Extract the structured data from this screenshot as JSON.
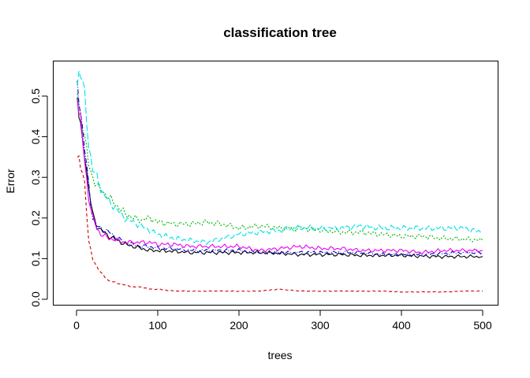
{
  "chart_data": {
    "type": "line",
    "title": "classification tree",
    "xlabel": "trees",
    "ylabel": "Error",
    "xlim": [
      0,
      500
    ],
    "ylim": [
      0,
      0.57
    ],
    "x_ticks": [
      0,
      100,
      200,
      300,
      400,
      500
    ],
    "y_ticks": [
      0.0,
      0.1,
      0.2,
      0.3,
      0.4,
      0.5
    ],
    "grid": false,
    "legend": "none",
    "x": [
      1,
      5,
      10,
      15,
      20,
      25,
      30,
      40,
      50,
      60,
      70,
      80,
      90,
      100,
      120,
      140,
      160,
      180,
      200,
      225,
      250,
      275,
      300,
      325,
      350,
      375,
      400,
      425,
      450,
      475,
      500
    ],
    "series": [
      {
        "color": "#000000",
        "dash": "solid",
        "values": [
          0.48,
          0.42,
          0.36,
          0.27,
          0.21,
          0.18,
          0.17,
          0.155,
          0.145,
          0.135,
          0.13,
          0.125,
          0.12,
          0.12,
          0.118,
          0.115,
          0.115,
          0.115,
          0.115,
          0.115,
          0.113,
          0.11,
          0.11,
          0.11,
          0.108,
          0.108,
          0.108,
          0.106,
          0.105,
          0.105,
          0.105
        ]
      },
      {
        "color": "#DF536B",
        "stroke": "#cc0000",
        "dash": "4,3",
        "values": [
          0.35,
          0.33,
          0.29,
          0.14,
          0.1,
          0.08,
          0.065,
          0.045,
          0.04,
          0.035,
          0.03,
          0.03,
          0.025,
          0.025,
          0.02,
          0.02,
          0.02,
          0.02,
          0.02,
          0.02,
          0.025,
          0.02,
          0.02,
          0.02,
          0.02,
          0.02,
          0.018,
          0.018,
          0.018,
          0.02,
          0.02
        ]
      },
      {
        "color": "#00CD00",
        "stroke": "#00b400",
        "dash": "2,2",
        "values": [
          0.5,
          0.46,
          0.4,
          0.33,
          0.3,
          0.28,
          0.27,
          0.25,
          0.23,
          0.21,
          0.2,
          0.195,
          0.2,
          0.19,
          0.185,
          0.185,
          0.19,
          0.185,
          0.175,
          0.18,
          0.175,
          0.175,
          0.17,
          0.165,
          0.165,
          0.16,
          0.155,
          0.155,
          0.15,
          0.148,
          0.145
        ]
      },
      {
        "color": "#0000CD",
        "stroke": "#0000cd",
        "dash": "6,2,1,2",
        "values": [
          0.53,
          0.46,
          0.37,
          0.28,
          0.2,
          0.18,
          0.175,
          0.165,
          0.15,
          0.14,
          0.135,
          0.13,
          0.13,
          0.125,
          0.125,
          0.12,
          0.12,
          0.12,
          0.12,
          0.115,
          0.115,
          0.115,
          0.115,
          0.115,
          0.115,
          0.11,
          0.11,
          0.11,
          0.112,
          0.115,
          0.115
        ]
      },
      {
        "color": "#00E5EE",
        "stroke": "#00e0e6",
        "dash": "8,3",
        "values": [
          0.55,
          0.56,
          0.5,
          0.38,
          0.32,
          0.3,
          0.27,
          0.24,
          0.22,
          0.2,
          0.19,
          0.18,
          0.17,
          0.16,
          0.15,
          0.145,
          0.14,
          0.15,
          0.16,
          0.165,
          0.17,
          0.175,
          0.175,
          0.175,
          0.18,
          0.175,
          0.175,
          0.175,
          0.175,
          0.175,
          0.165
        ]
      },
      {
        "color": "#FF00FF",
        "stroke": "#ee00ee",
        "dash": "solid",
        "values": [
          0.49,
          0.44,
          0.34,
          0.25,
          0.2,
          0.175,
          0.16,
          0.15,
          0.145,
          0.14,
          0.14,
          0.14,
          0.14,
          0.135,
          0.135,
          0.13,
          0.13,
          0.13,
          0.13,
          0.12,
          0.125,
          0.13,
          0.125,
          0.125,
          0.12,
          0.12,
          0.12,
          0.115,
          0.12,
          0.12,
          0.12
        ]
      }
    ]
  }
}
